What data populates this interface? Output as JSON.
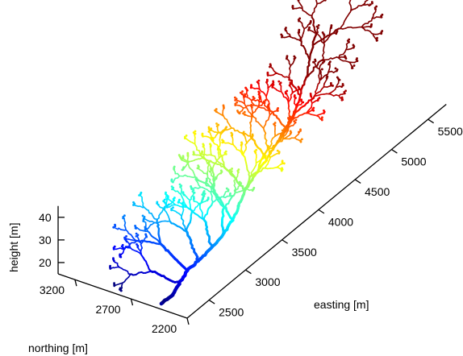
{
  "chart_data": {
    "type": "scatter",
    "subtype": "3d-branching-network",
    "title": "",
    "axes": {
      "easting": {
        "label": "easting [m]",
        "range": [
          2200,
          5750
        ],
        "ticks": [
          2500,
          3000,
          3500,
          4000,
          4500,
          5000,
          5500
        ],
        "tick_labels": [
          "2500",
          "3000",
          "3500",
          "4000",
          "4500",
          "5000",
          "5500"
        ]
      },
      "northing": {
        "label": "northing [m]",
        "range": [
          2200,
          3350
        ],
        "ticks": [
          2200,
          2700,
          3200
        ],
        "tick_labels": [
          "2200",
          "2700",
          "3200"
        ]
      },
      "height": {
        "label": "height [m]",
        "range": [
          15,
          45
        ],
        "ticks": [
          20,
          30,
          40
        ],
        "tick_labels": [
          "20",
          "30",
          "40"
        ]
      }
    },
    "colormap": "jet",
    "color_by": "easting",
    "grid": false,
    "legend": "none",
    "network_nodes": [
      {
        "id": "outlet",
        "easting": 2230,
        "northing": 2300,
        "height": 15
      },
      {
        "id": "J1",
        "easting": 2700,
        "northing": 2880,
        "height": 18
      },
      {
        "id": "J2",
        "easting": 3050,
        "northing": 2750,
        "height": 21
      },
      {
        "id": "J3",
        "easting": 3400,
        "northing": 2700,
        "height": 25
      },
      {
        "id": "J4",
        "easting": 3750,
        "northing": 2800,
        "height": 27
      },
      {
        "id": "J5",
        "easting": 4050,
        "northing": 2900,
        "height": 31
      },
      {
        "id": "J6",
        "easting": 4350,
        "northing": 2950,
        "height": 35
      },
      {
        "id": "J7",
        "easting": 4700,
        "northing": 3000,
        "height": 38
      },
      {
        "id": "J8",
        "easting": 5050,
        "northing": 3050,
        "height": 41
      },
      {
        "id": "J9",
        "easting": 5550,
        "northing": 3200,
        "height": 44
      }
    ]
  }
}
